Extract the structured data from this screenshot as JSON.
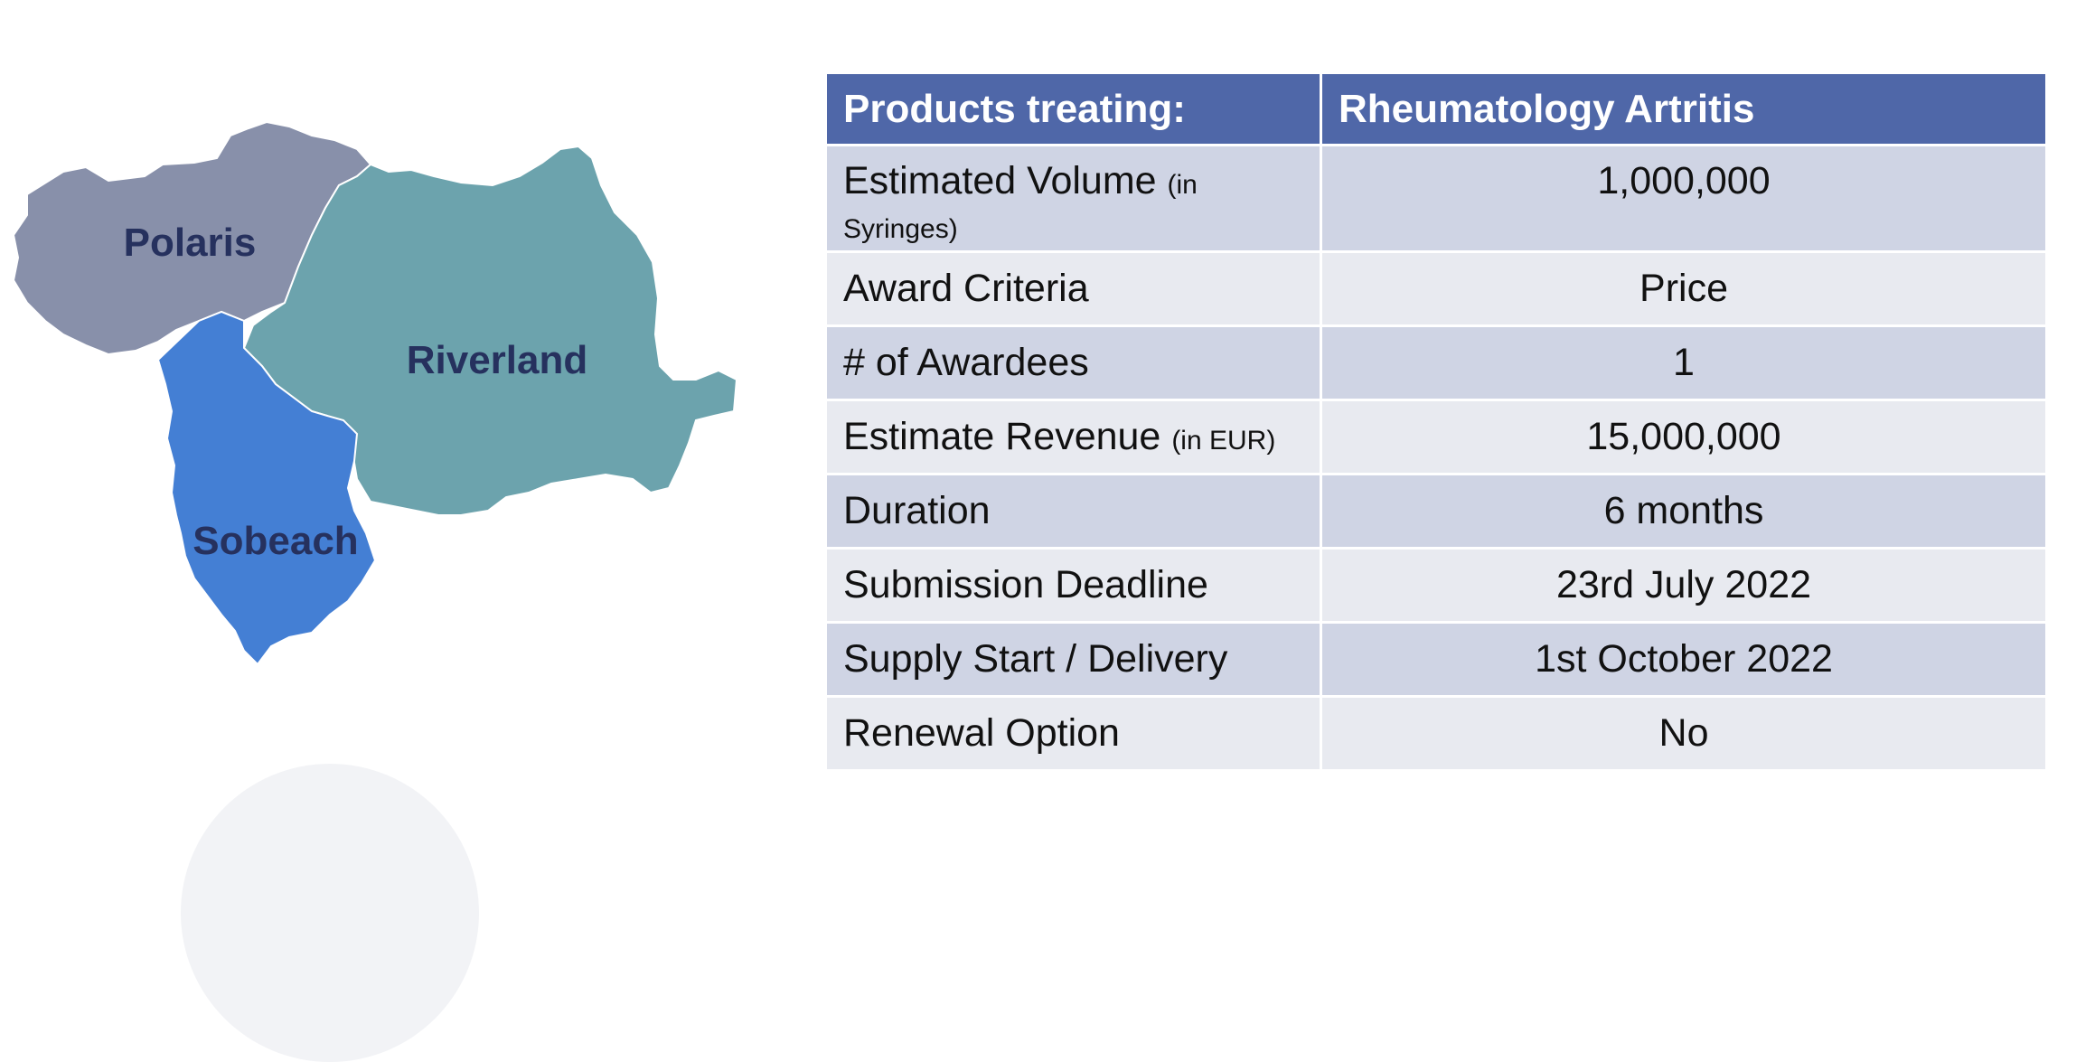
{
  "map": {
    "regions": [
      {
        "name": "Polaris",
        "color": "#8890aa"
      },
      {
        "name": "Riverland",
        "color": "#6ca3ad"
      },
      {
        "name": "Sobeach",
        "color": "#447fd4"
      }
    ]
  },
  "table": {
    "header": {
      "label": "Products treating:",
      "value": "Rheumatology Artritis"
    },
    "rows": [
      {
        "label": "Estimated Volume",
        "unit": "(in Syringes)",
        "value": "1,000,000"
      },
      {
        "label": "Award Criteria",
        "unit": "",
        "value": "Price"
      },
      {
        "label": "# of Awardees",
        "unit": "",
        "value": "1"
      },
      {
        "label": "Estimate Revenue",
        "unit": "(in EUR)",
        "value": "15,000,000"
      },
      {
        "label": "Duration",
        "unit": "",
        "value": "6 months"
      },
      {
        "label": "Submission Deadline",
        "unit": "",
        "value": "23rd July 2022"
      },
      {
        "label": "Supply Start / Delivery",
        "unit": "",
        "value": "1st October 2022"
      },
      {
        "label": "Renewal Option",
        "unit": "",
        "value": "No"
      }
    ],
    "colors": {
      "header": "#4f67a8",
      "row_dark": "#cfd4e4",
      "row_light": "#e8eaf0"
    }
  }
}
